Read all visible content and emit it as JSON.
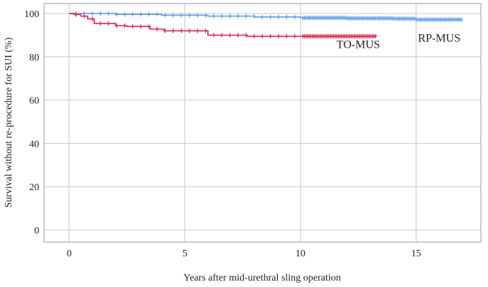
{
  "chart_data": {
    "type": "line",
    "title": "",
    "xlabel": "Years after mid-urethral sling operation",
    "ylabel": "Survival without re-procedure for SUI (%)",
    "xlim": [
      -1.08,
      17.8
    ],
    "ylim": [
      -5.6,
      104.6
    ],
    "xticks": [
      0,
      5,
      10,
      15
    ],
    "yticks": [
      0,
      20,
      40,
      60,
      80,
      100
    ],
    "grid": true,
    "series": [
      {
        "name": "RP-MUS",
        "color": "#5b9be6",
        "censor_dense_from": 10,
        "x": [
          0,
          2,
          4,
          6,
          8,
          10,
          12,
          14,
          15,
          17
        ],
        "y": [
          100,
          99.6,
          99.2,
          98.8,
          98.4,
          98,
          97.8,
          97.6,
          97.2,
          97.0
        ]
      },
      {
        "name": "TO-MUS",
        "color": "#e0224e",
        "censor_dense_from": 10,
        "x": [
          0,
          0.2,
          0.5,
          0.8,
          1.08,
          2.0,
          2.5,
          3.5,
          4.1,
          6.0,
          7.7,
          13.3
        ],
        "y": [
          100,
          99.5,
          98.8,
          97.5,
          95.4,
          94.4,
          94.0,
          92.8,
          92.0,
          90.0,
          89.5,
          89.5
        ]
      }
    ],
    "annotations": [
      {
        "text": "TO-MUS",
        "x": 12.5,
        "y": 84
      },
      {
        "text": "RP-MUS",
        "x": 16,
        "y": 87
      }
    ]
  }
}
